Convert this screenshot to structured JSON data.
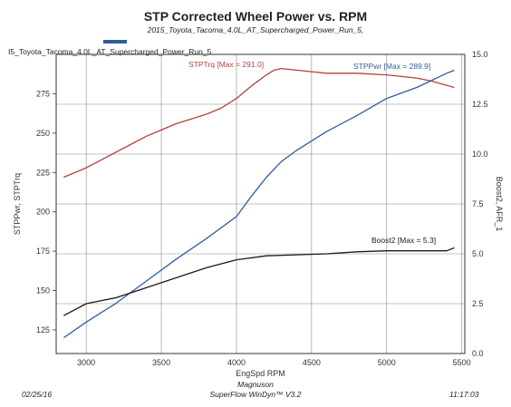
{
  "header": {
    "title": "STP Corrected Wheel Power vs. RPM",
    "subtitle": "2015_Toyota_Tacoma_4.0L_AT_Supercharged_Power_Run_5,",
    "run_label": "I5_Toyota_Tacoma_4.0L_AT_Supercharged_Power_Run_5"
  },
  "footer": {
    "date": "02/25/16",
    "operator": "Magnuson",
    "software": "SuperFlow WinDyn™ V3.2",
    "time": "11:17:03"
  },
  "colors": {
    "torque": "#b2423c",
    "power": "#2f5d9c",
    "boost": "#1a1a1a",
    "grid": "#888888"
  },
  "chart_data": {
    "type": "line",
    "title": "STP Corrected Wheel Power vs. RPM",
    "xlabel": "EngSpd RPM",
    "ylabel": "STPPwr, STPTrq",
    "y2label": "Boost2, AFR_1",
    "xlim": [
      2800,
      5520
    ],
    "ylim": [
      110,
      300
    ],
    "y2lim": [
      0,
      15
    ],
    "x_ticks": [
      3000,
      3500,
      4000,
      4500,
      5000,
      5500
    ],
    "y_ticks": [
      125,
      150,
      175,
      200,
      225,
      250,
      275
    ],
    "y2_ticks": [
      0,
      2.5,
      5,
      7.5,
      10,
      12.5,
      15
    ],
    "y2_tick_labels": [
      "0.0",
      "2.5",
      "5.0",
      "7.5",
      "10.0",
      "12.5",
      "15.0"
    ],
    "grid": true,
    "series": [
      {
        "name": "STPTrq",
        "axis": "left",
        "annotation": "STPTrq [Max = 291.0]",
        "x": [
          2850,
          3000,
          3100,
          3200,
          3300,
          3400,
          3500,
          3600,
          3700,
          3800,
          3900,
          4000,
          4100,
          4200,
          4250,
          4300,
          4400,
          4500,
          4600,
          4800,
          5000,
          5200,
          5300,
          5450
        ],
        "y": [
          222,
          228,
          233,
          238,
          243,
          248,
          252,
          256,
          259,
          262,
          266,
          272,
          280,
          287,
          290,
          291,
          290,
          289,
          288,
          288,
          287,
          285,
          283,
          279
        ]
      },
      {
        "name": "STPPwr",
        "axis": "left",
        "annotation": "STPPwr [Max = 289.9]",
        "x": [
          2850,
          3000,
          3200,
          3400,
          3600,
          3800,
          4000,
          4100,
          4200,
          4300,
          4400,
          4600,
          4800,
          5000,
          5200,
          5400,
          5450
        ],
        "y": [
          120,
          130,
          142,
          156,
          170,
          183,
          197,
          210,
          222,
          232,
          239,
          251,
          261,
          272,
          279,
          288,
          289.9
        ]
      },
      {
        "name": "Boost2",
        "axis": "right",
        "annotation": "Boost2 [Max = 5.3]",
        "x": [
          2850,
          3000,
          3200,
          3400,
          3600,
          3800,
          4000,
          4200,
          4400,
          4600,
          4800,
          5000,
          5200,
          5400,
          5450
        ],
        "y": [
          1.9,
          2.5,
          2.8,
          3.3,
          3.8,
          4.3,
          4.7,
          4.9,
          4.95,
          5.0,
          5.1,
          5.15,
          5.15,
          5.15,
          5.3
        ]
      }
    ]
  }
}
